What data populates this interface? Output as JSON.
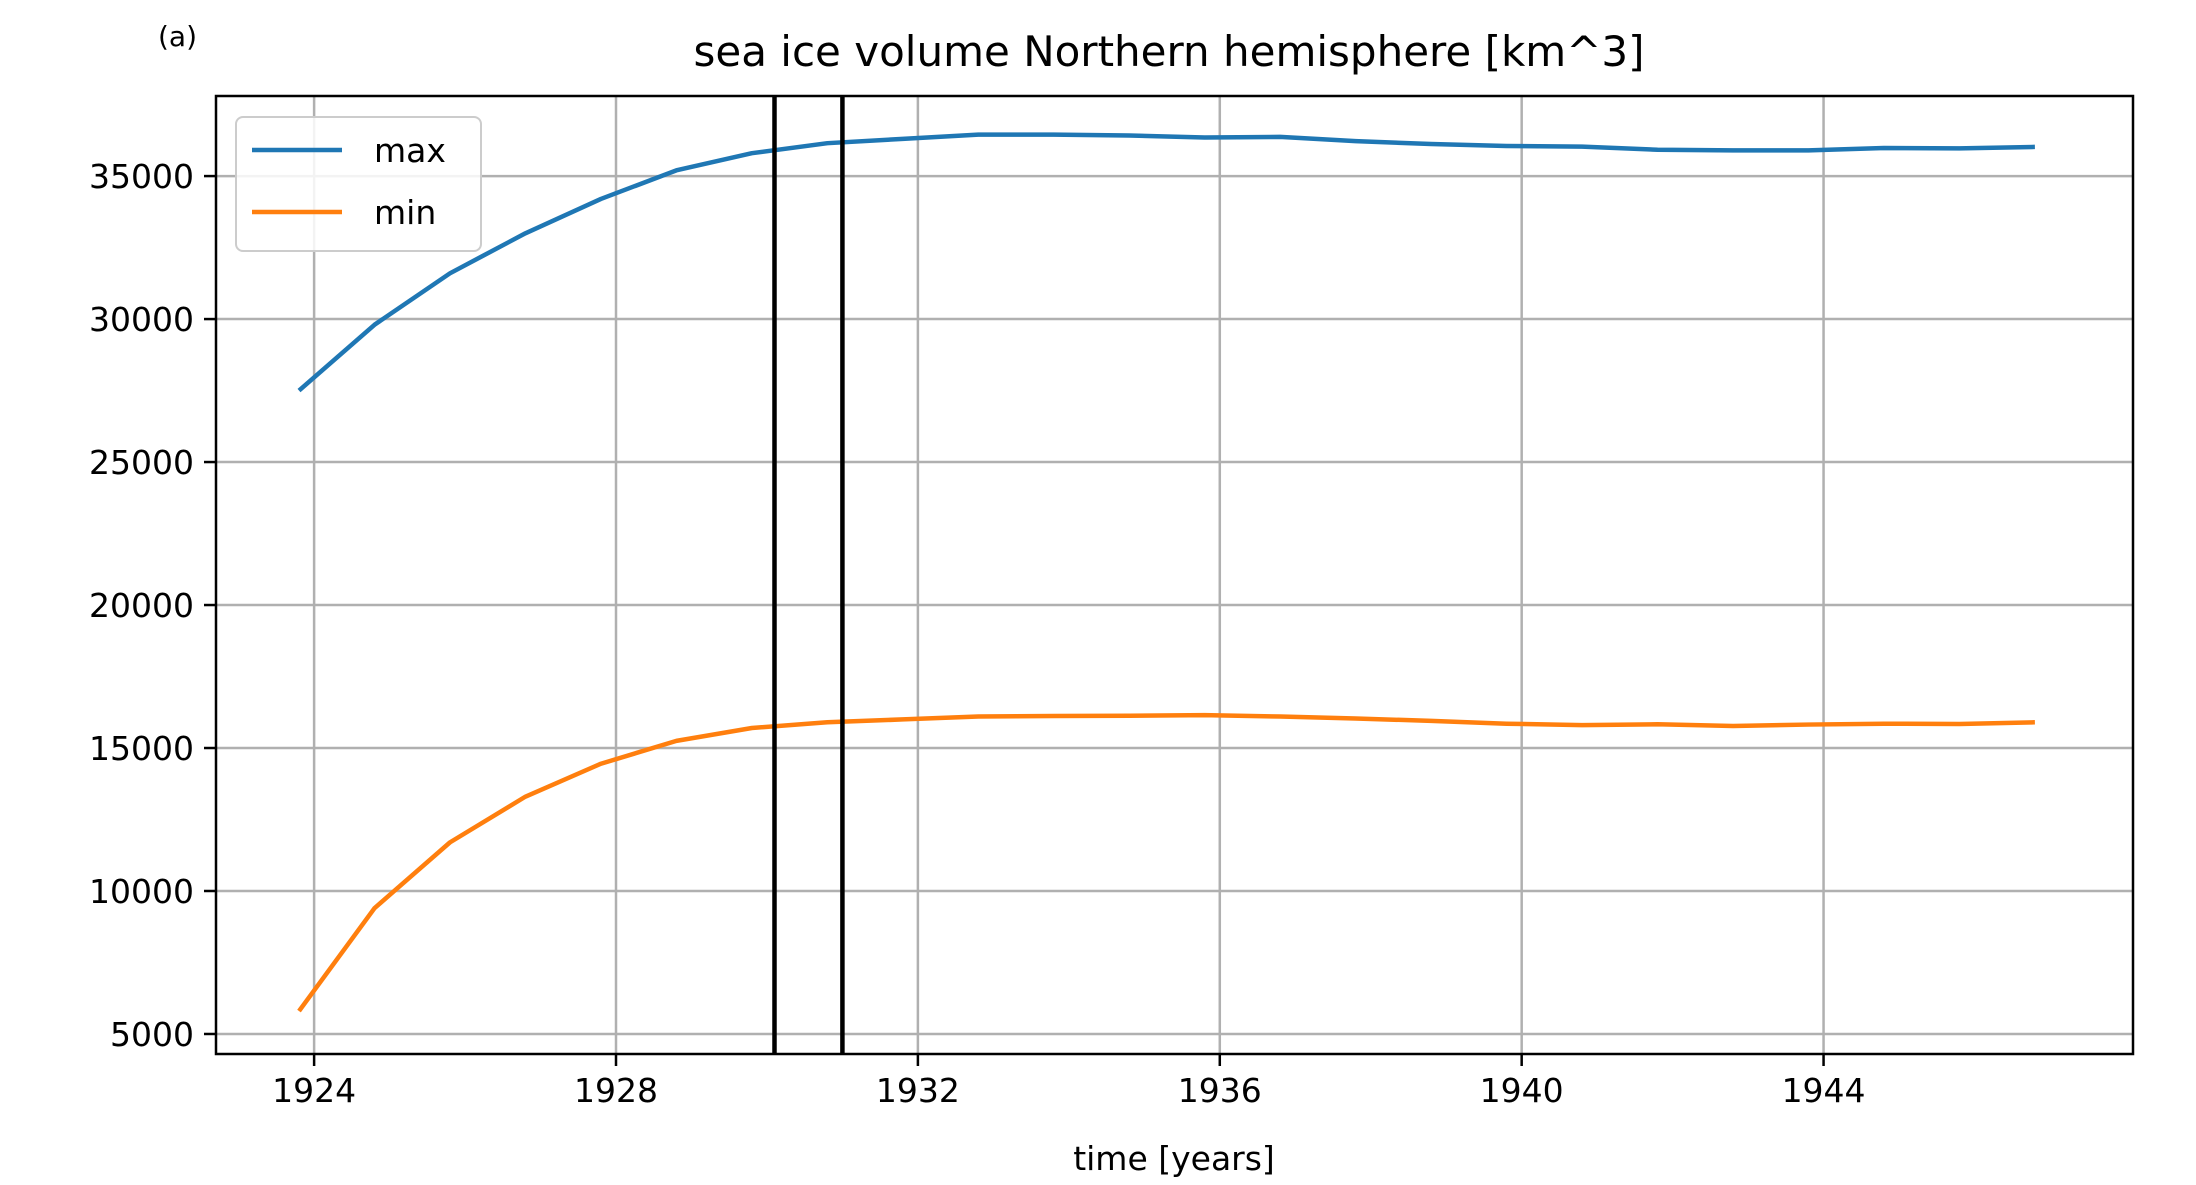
{
  "chart_data": {
    "type": "line",
    "panel_label": "(a)",
    "title": "sea ice volume Northern hemisphere [km^3]",
    "xlabel": "time [years]",
    "ylabel": "",
    "xlim": [
      1922.7,
      1948.1
    ],
    "ylim": [
      4300,
      37800
    ],
    "xticks": [
      1924,
      1928,
      1932,
      1936,
      1940,
      1944
    ],
    "yticks": [
      5000,
      10000,
      15000,
      20000,
      25000,
      30000,
      35000
    ],
    "grid": true,
    "legend_position": "upper-left",
    "x": [
      1923.8,
      1924.8,
      1925.8,
      1926.8,
      1927.8,
      1928.8,
      1929.8,
      1930.8,
      1931.8,
      1932.8,
      1933.8,
      1934.8,
      1935.8,
      1936.8,
      1937.8,
      1938.8,
      1939.8,
      1940.8,
      1941.8,
      1942.8,
      1943.8,
      1944.8,
      1945.8,
      1946.8
    ],
    "series": [
      {
        "name": "max",
        "color": "#1f77b4",
        "values": [
          27500,
          29800,
          31600,
          33000,
          34200,
          35200,
          35800,
          36150,
          36300,
          36450,
          36450,
          36420,
          36350,
          36370,
          36220,
          36120,
          36050,
          36030,
          35920,
          35900,
          35900,
          35980,
          35970,
          36020
        ]
      },
      {
        "name": "min",
        "color": "#ff7f0e",
        "values": [
          5800,
          9400,
          11700,
          13300,
          14450,
          15250,
          15700,
          15900,
          16000,
          16100,
          16120,
          16130,
          16150,
          16100,
          16030,
          15950,
          15850,
          15800,
          15830,
          15770,
          15820,
          15850,
          15840,
          15900
        ]
      }
    ],
    "vertical_lines": [
      1930.1,
      1931.0
    ],
    "vertical_line_color": "#000000"
  }
}
